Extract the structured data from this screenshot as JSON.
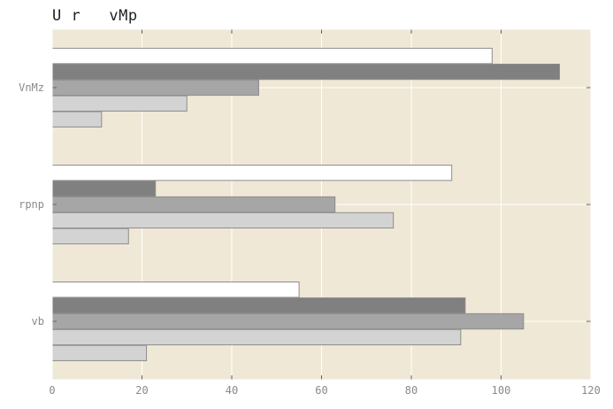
{
  "chart_data": {
    "type": "bar",
    "orientation": "horizontal",
    "title": "U r   vMp",
    "xlabel": "",
    "ylabel": "",
    "xlim": [
      0,
      120
    ],
    "xticks": [
      0,
      20,
      40,
      60,
      80,
      100,
      120
    ],
    "categories": [
      "vb",
      "rpnp",
      "VnMz"
    ],
    "series": [
      {
        "color": "#d3d3d3",
        "values": [
          21,
          17,
          11
        ]
      },
      {
        "color": "#d3d3d3",
        "values": [
          91,
          76,
          30
        ]
      },
      {
        "color": "#a6a6a6",
        "values": [
          105,
          63,
          46
        ]
      },
      {
        "color": "#808080",
        "values": [
          92,
          23,
          113
        ]
      },
      {
        "color": "#ffffff",
        "values": [
          55,
          89,
          98
        ]
      }
    ],
    "background": "#efe8d6",
    "grid": true,
    "legend": "none"
  }
}
